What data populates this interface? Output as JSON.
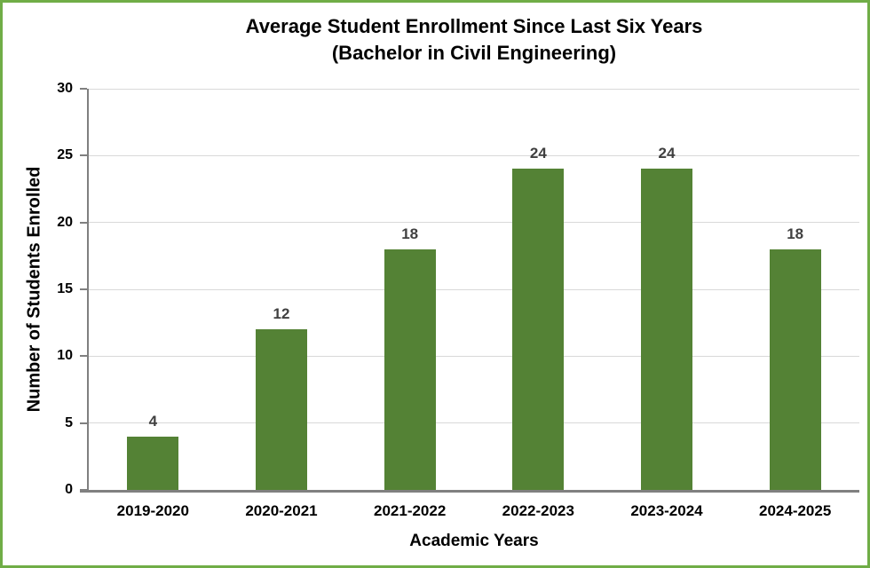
{
  "chart_data": {
    "type": "bar",
    "title": "Average Student Enrollment Since Last Six Years",
    "subtitle": "(Bachelor in Civil Engineering)",
    "xlabel": "Academic Years",
    "ylabel": "Number of Students Enrolled",
    "categories": [
      "2019-2020",
      "2020-2021",
      "2021-2022",
      "2022-2023",
      "2023-2024",
      "2024-2025"
    ],
    "values": [
      4,
      12,
      18,
      24,
      24,
      18
    ],
    "data_labels": [
      "4",
      "12",
      "18",
      "24",
      "24",
      "18"
    ],
    "ylim": [
      0,
      30
    ],
    "yticks": [
      0,
      5,
      10,
      15,
      20,
      25,
      30
    ],
    "grid": true,
    "legend": false,
    "colors": {
      "bar": "#548235",
      "frame_border": "#70ad47",
      "axis_line": "#808080",
      "gridline": "#d9d9d9",
      "data_label": "#404040",
      "tick_label": "#000000"
    }
  }
}
